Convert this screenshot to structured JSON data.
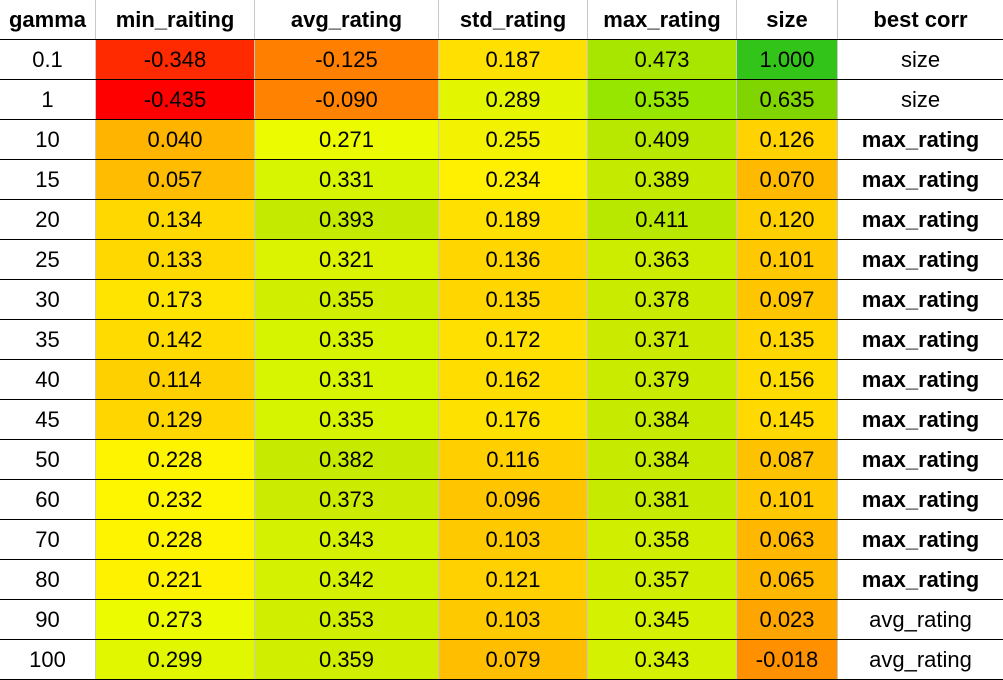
{
  "columns": [
    "gamma",
    "min_raiting",
    "avg_rating",
    "std_rating",
    "max_rating",
    "size",
    "best corr"
  ],
  "rows": [
    {
      "gamma": "0.1",
      "cells": [
        "-0.348",
        "-0.125",
        "0.187",
        "0.473",
        "1.000"
      ],
      "colors": [
        "#ff2a00",
        "#ff7f00",
        "#ffe000",
        "#a8e600",
        "#33c41a"
      ],
      "best": "size",
      "best_bold": false
    },
    {
      "gamma": "1",
      "cells": [
        "-0.435",
        "-0.090",
        "0.289",
        "0.535",
        "0.635"
      ],
      "colors": [
        "#ff0000",
        "#ff8200",
        "#e4f500",
        "#96e600",
        "#80d400"
      ],
      "best": "size",
      "best_bold": false
    },
    {
      "gamma": "10",
      "cells": [
        "0.040",
        "0.271",
        "0.255",
        "0.409",
        "0.126"
      ],
      "colors": [
        "#ffb400",
        "#ecfb00",
        "#f3f200",
        "#b8e800",
        "#ffd200"
      ],
      "best": "max_rating",
      "best_bold": true
    },
    {
      "gamma": "15",
      "cells": [
        "0.057",
        "0.331",
        "0.234",
        "0.389",
        "0.070"
      ],
      "colors": [
        "#ffbc00",
        "#d7f400",
        "#ffef00",
        "#c4ea00",
        "#ffba00"
      ],
      "best": "max_rating",
      "best_bold": true
    },
    {
      "gamma": "20",
      "cells": [
        "0.134",
        "0.393",
        "0.189",
        "0.411",
        "0.120"
      ],
      "colors": [
        "#ffd800",
        "#c4ea00",
        "#ffe000",
        "#b8e800",
        "#ffd000"
      ],
      "best": "max_rating",
      "best_bold": true
    },
    {
      "gamma": "25",
      "cells": [
        "0.133",
        "0.321",
        "0.136",
        "0.363",
        "0.101"
      ],
      "colors": [
        "#ffd800",
        "#dbf300",
        "#ffd600",
        "#ccec00",
        "#ffc800"
      ],
      "best": "max_rating",
      "best_bold": true
    },
    {
      "gamma": "30",
      "cells": [
        "0.173",
        "0.355",
        "0.135",
        "0.378",
        "0.097"
      ],
      "colors": [
        "#ffe400",
        "#d0ef00",
        "#ffd600",
        "#c8eb00",
        "#ffc600"
      ],
      "best": "max_rating",
      "best_bold": true
    },
    {
      "gamma": "35",
      "cells": [
        "0.142",
        "0.335",
        "0.172",
        "0.371",
        "0.135"
      ],
      "colors": [
        "#ffdb00",
        "#d6f300",
        "#ffe000",
        "#caeb00",
        "#ffd600"
      ],
      "best": "max_rating",
      "best_bold": true
    },
    {
      "gamma": "40",
      "cells": [
        "0.114",
        "0.331",
        "0.162",
        "0.379",
        "0.156"
      ],
      "colors": [
        "#ffd000",
        "#d7f400",
        "#ffdd00",
        "#c8eb00",
        "#ffdc00"
      ],
      "best": "max_rating",
      "best_bold": true
    },
    {
      "gamma": "45",
      "cells": [
        "0.129",
        "0.335",
        "0.176",
        "0.384",
        "0.145"
      ],
      "colors": [
        "#ffd600",
        "#d6f300",
        "#ffe100",
        "#c6ea00",
        "#ffd900"
      ],
      "best": "max_rating",
      "best_bold": true
    },
    {
      "gamma": "50",
      "cells": [
        "0.228",
        "0.382",
        "0.116",
        "0.384",
        "0.087"
      ],
      "colors": [
        "#fff400",
        "#c7eb00",
        "#ffcf00",
        "#c6ea00",
        "#ffc200"
      ],
      "best": "max_rating",
      "best_bold": true
    },
    {
      "gamma": "60",
      "cells": [
        "0.232",
        "0.373",
        "0.096",
        "0.381",
        "0.101"
      ],
      "colors": [
        "#fef500",
        "#cbec00",
        "#ffc600",
        "#c7eb00",
        "#ffc800"
      ],
      "best": "max_rating",
      "best_bold": true
    },
    {
      "gamma": "70",
      "cells": [
        "0.228",
        "0.343",
        "0.103",
        "0.358",
        "0.063"
      ],
      "colors": [
        "#fff400",
        "#d3f100",
        "#ffc900",
        "#cfee00",
        "#ffb700"
      ],
      "best": "max_rating",
      "best_bold": true
    },
    {
      "gamma": "80",
      "cells": [
        "0.221",
        "0.342",
        "0.121",
        "0.357",
        "0.065"
      ],
      "colors": [
        "#fff200",
        "#d3f100",
        "#ffd100",
        "#cfee00",
        "#ffb800"
      ],
      "best": "max_rating",
      "best_bold": true
    },
    {
      "gamma": "90",
      "cells": [
        "0.273",
        "0.353",
        "0.103",
        "0.345",
        "0.023"
      ],
      "colors": [
        "#ecfb00",
        "#d0ef00",
        "#ffc900",
        "#d3f100",
        "#ffa500"
      ],
      "best": "avg_rating",
      "best_bold": false
    },
    {
      "gamma": "100",
      "cells": [
        "0.299",
        "0.359",
        "0.079",
        "0.343",
        "-0.018"
      ],
      "colors": [
        "#e1f700",
        "#cfee00",
        "#ffbe00",
        "#d3f100",
        "#ff9000"
      ],
      "best": "avg_rating",
      "best_bold": false
    }
  ]
}
